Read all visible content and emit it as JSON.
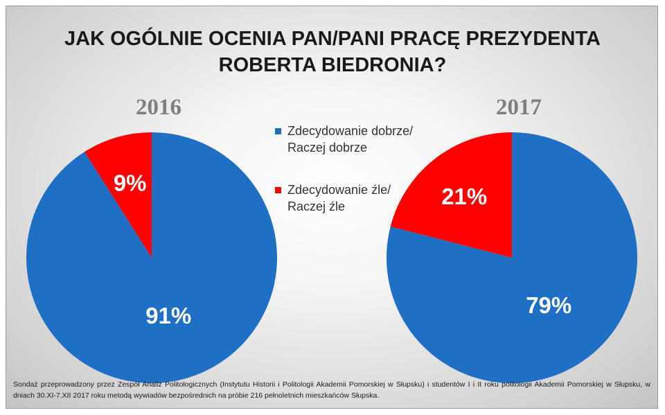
{
  "title_lines": [
    "JAK OGÓLNIE OCENIA PAN/PANI PRACĘ PREZYDENTA",
    "ROBERTA BIEDRONIA?"
  ],
  "colors": {
    "positive": "#1F6FC4",
    "negative": "#FF0000"
  },
  "chart_data": [
    {
      "type": "pie",
      "title": "2016",
      "labels": [
        "Zdecydowanie dobrze/ Raczej dobrze",
        "Zdecydowanie źle/ Raczej źle"
      ],
      "values": [
        91,
        9
      ],
      "data_labels": [
        "91%",
        "9%"
      ]
    },
    {
      "type": "pie",
      "title": "2017",
      "labels": [
        "Zdecydowanie dobrze/ Raczej dobrze",
        "Zdecydowanie źle/ Raczej źle"
      ],
      "values": [
        79,
        21
      ],
      "data_labels": [
        "79%",
        "21%"
      ]
    }
  ],
  "legend": [
    {
      "lines": [
        "Zdecydowanie dobrze/",
        "Raczej dobrze"
      ]
    },
    {
      "lines": [
        "Zdecydowanie źle/",
        "Raczej źle"
      ]
    }
  ],
  "footnote": "Sondaż przeprowadzony przez Zespół Analiz Politologicznych (Instytutu Historii i Politologii Akademii Pomorskiej w Słupsku) i studentów I i II roku politologii Akademii Pomorskiej w Słupsku, w dniach 30.XI-7.XII 2017 roku metodą wywiadów bezpośrednich na próbie 216 pełnoletnich mieszkańców Słupska."
}
